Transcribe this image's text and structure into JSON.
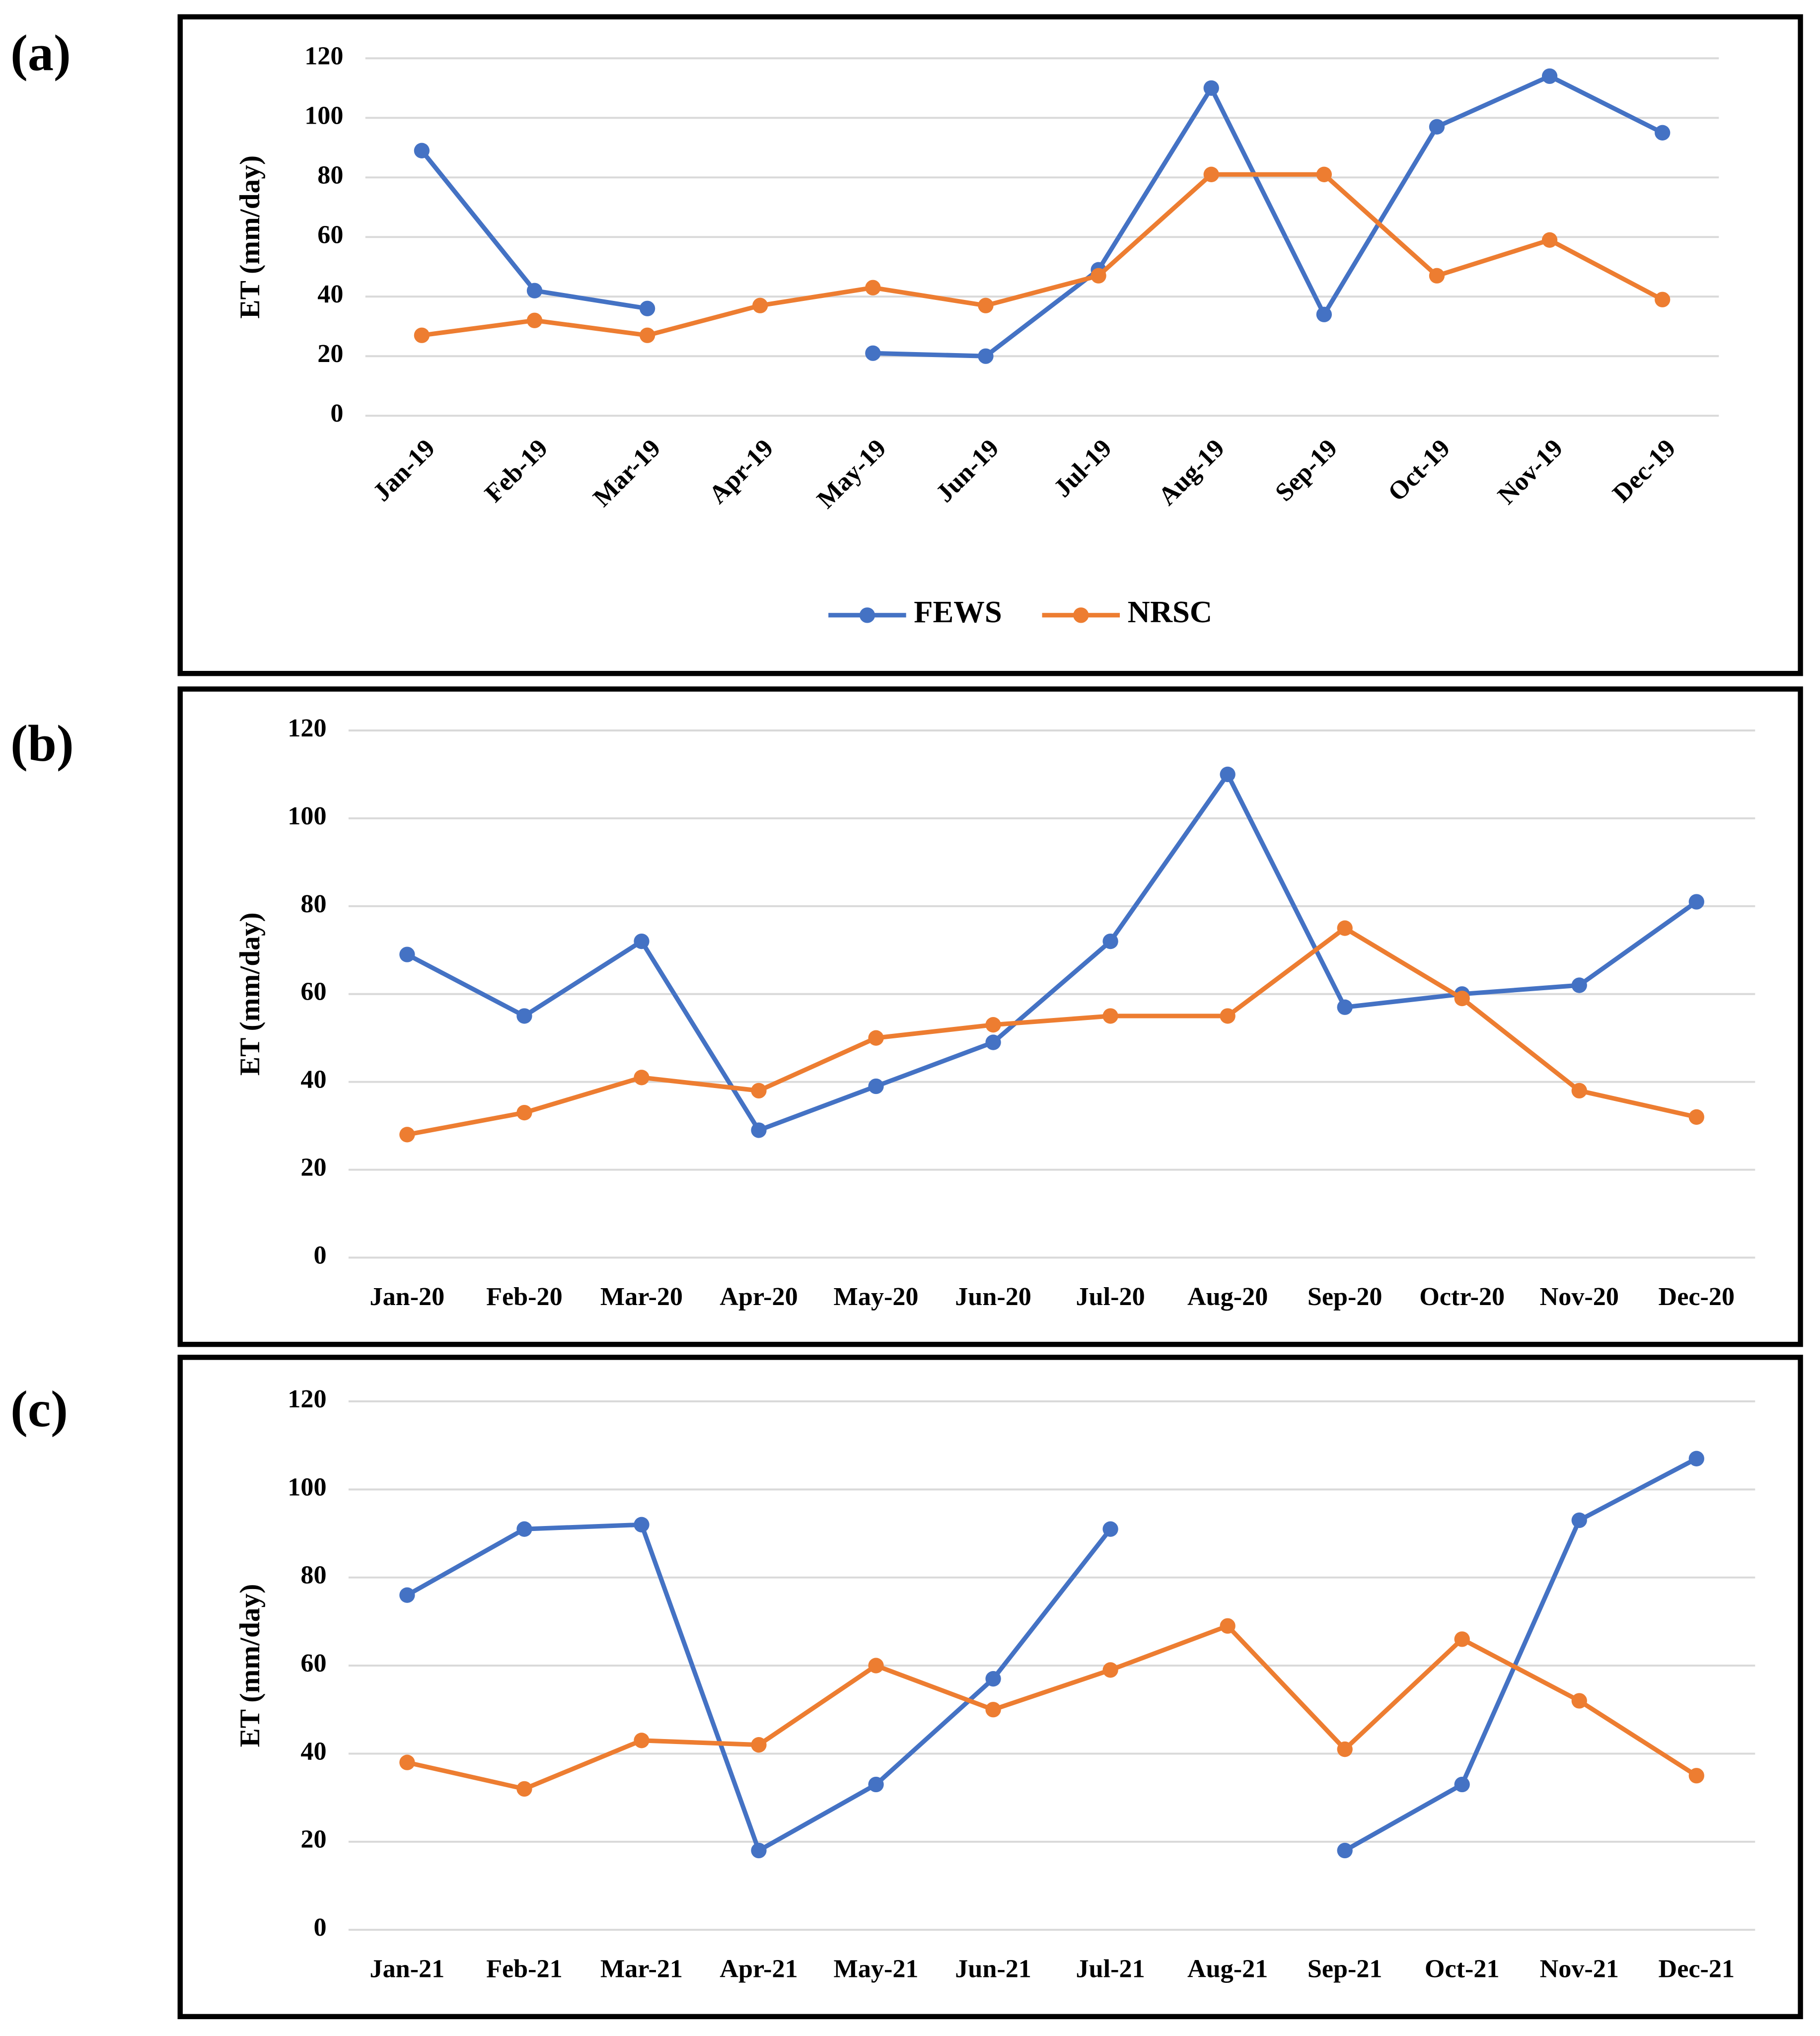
{
  "chart_data": [
    {
      "type": "line",
      "label": "(a)",
      "y_label": "ET (mm/day)",
      "categories": [
        "Jan-19",
        "Feb-19",
        "Mar-19",
        "Apr-19",
        "May-19",
        "Jun-19",
        "Jul-19",
        "Aug-19",
        "Sep-19",
        "Oct-19",
        "Nov-19",
        "Dec-19"
      ],
      "series": [
        {
          "name": "FEWS",
          "color": "#4472c4",
          "values": [
            89,
            42,
            36,
            null,
            21,
            20,
            49,
            110,
            34,
            97,
            114,
            95
          ]
        },
        {
          "name": "NRSC",
          "color": "#ed7d31",
          "values": [
            27,
            32,
            27,
            37,
            43,
            37,
            47,
            81,
            81,
            47,
            59,
            39
          ]
        }
      ],
      "ylim": [
        0,
        120
      ],
      "yticks": [
        0,
        20,
        40,
        60,
        80,
        100,
        120
      ],
      "grid": true,
      "legend": "bottom",
      "x_label_rotation": -45
    },
    {
      "type": "line",
      "label": "(b)",
      "y_label": "ET (mm/day)",
      "categories": [
        "Jan-20",
        "Feb-20",
        "Mar-20",
        "Apr-20",
        "May-20",
        "Jun-20",
        "Jul-20",
        "Aug-20",
        "Sep-20",
        "Octr-20",
        "Nov-20",
        "Dec-20"
      ],
      "series": [
        {
          "name": "FEWS",
          "color": "#4472c4",
          "values": [
            69,
            55,
            72,
            29,
            39,
            49,
            72,
            110,
            57,
            60,
            62,
            81
          ]
        },
        {
          "name": "NRSC",
          "color": "#ed7d31",
          "values": [
            28,
            33,
            41,
            38,
            50,
            53,
            55,
            55,
            75,
            59,
            38,
            32
          ]
        }
      ],
      "ylim": [
        0,
        120
      ],
      "yticks": [
        0,
        20,
        40,
        60,
        80,
        100,
        120
      ],
      "grid": true
    },
    {
      "type": "line",
      "label": "(c)",
      "y_label": "ET (mm/day)",
      "categories": [
        "Jan-21",
        "Feb-21",
        "Mar-21",
        "Apr-21",
        "May-21",
        "Jun-21",
        "Jul-21",
        "Aug-21",
        "Sep-21",
        "Oct-21",
        "Nov-21",
        "Dec-21"
      ],
      "series": [
        {
          "name": "FEWS",
          "color": "#4472c4",
          "values": [
            76,
            91,
            92,
            18,
            33,
            57,
            91,
            null,
            18,
            33,
            93,
            107
          ]
        },
        {
          "name": "NRSC",
          "color": "#ed7d31",
          "values": [
            38,
            32,
            43,
            42,
            60,
            50,
            59,
            69,
            41,
            66,
            52,
            35
          ]
        }
      ],
      "ylim": [
        0,
        120
      ],
      "yticks": [
        0,
        20,
        40,
        60,
        80,
        100,
        120
      ],
      "grid": true
    }
  ]
}
